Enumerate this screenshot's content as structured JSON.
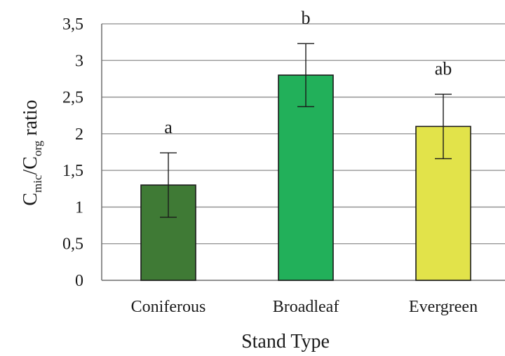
{
  "chart_data": {
    "type": "bar",
    "categories": [
      "Coniferous",
      "Broadleaf",
      "Evergreen"
    ],
    "values": [
      1.3,
      2.8,
      2.1
    ],
    "error": [
      0.44,
      0.43,
      0.44
    ],
    "significance_labels": [
      "a",
      "b",
      "ab"
    ],
    "bar_colors": [
      "#3f7a35",
      "#22b05a",
      "#e2e34a"
    ],
    "xlabel": "Stand Type",
    "ylabel": {
      "c1": "C",
      "sub1": "mic",
      "sep": "/C",
      "sub2": "org",
      "rest": " ratio"
    },
    "ylim": [
      0,
      3.5
    ],
    "yticks": [
      "0",
      "0,5",
      "1",
      "1,5",
      "2",
      "2,5",
      "3",
      "3,5"
    ],
    "grid": true,
    "legend": "none"
  }
}
